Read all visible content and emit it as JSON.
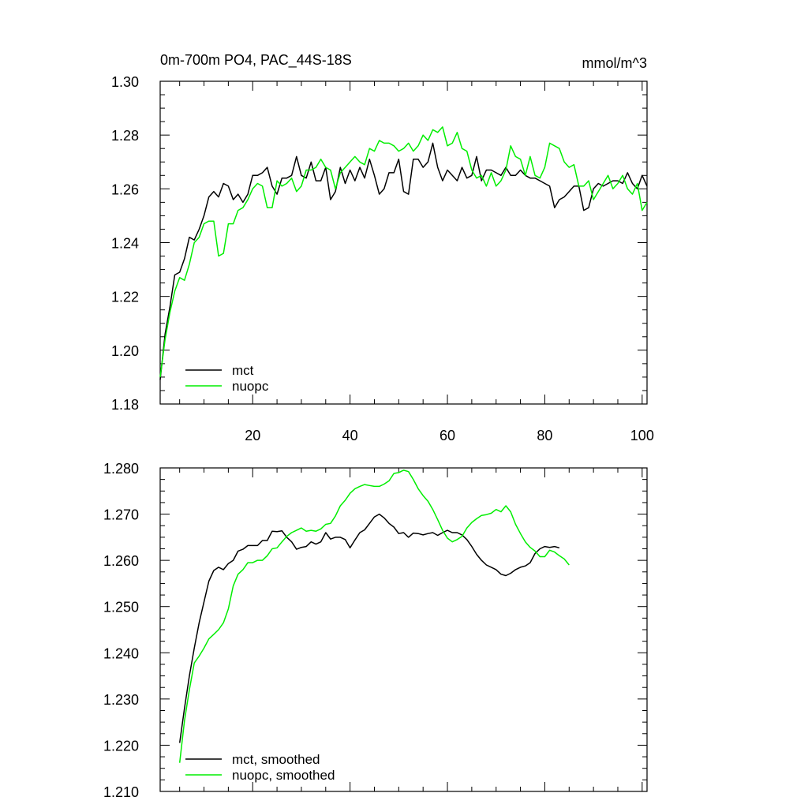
{
  "colors": {
    "mct": "#000000",
    "nuopc": "#00ee00",
    "axis": "#000000",
    "background": "#ffffff"
  },
  "chart_data": [
    {
      "type": "line",
      "title": "0m-700m PO4, PAC_44S-18S",
      "units": "mmol/m^3",
      "xlim": [
        1,
        101
      ],
      "ylim": [
        1.18,
        1.3
      ],
      "x_ticks": [
        20,
        40,
        60,
        80,
        100
      ],
      "x_tick_labels": [
        "20",
        "40",
        "60",
        "80",
        "100"
      ],
      "y_ticks": [
        1.18,
        1.2,
        1.22,
        1.24,
        1.26,
        1.28,
        1.3
      ],
      "y_tick_labels": [
        "1.18",
        "1.20",
        "1.22",
        "1.24",
        "1.26",
        "1.28",
        "1.30"
      ],
      "legend_placement": "bottom-left",
      "grid": false,
      "series": [
        {
          "name": "mct",
          "color": "#000000",
          "x_start": 1,
          "values": [
            1.189,
            1.206,
            1.216,
            1.228,
            1.229,
            1.234,
            1.242,
            1.241,
            1.245,
            1.25,
            1.257,
            1.259,
            1.257,
            1.262,
            1.261,
            1.256,
            1.258,
            1.255,
            1.258,
            1.265,
            1.265,
            1.266,
            1.268,
            1.261,
            1.258,
            1.264,
            1.264,
            1.265,
            1.272,
            1.265,
            1.264,
            1.27,
            1.263,
            1.263,
            1.268,
            1.256,
            1.259,
            1.268,
            1.262,
            1.267,
            1.263,
            1.268,
            1.264,
            1.271,
            1.265,
            1.258,
            1.26,
            1.266,
            1.266,
            1.271,
            1.259,
            1.258,
            1.271,
            1.271,
            1.268,
            1.27,
            1.277,
            1.268,
            1.263,
            1.267,
            1.265,
            1.263,
            1.268,
            1.264,
            1.265,
            1.272,
            1.263,
            1.267,
            1.267,
            1.266,
            1.265,
            1.268,
            1.265,
            1.265,
            1.267,
            1.265,
            1.264,
            1.264,
            1.263,
            1.262,
            1.261,
            1.253,
            1.256,
            1.257,
            1.259,
            1.261,
            1.261,
            1.252,
            1.253,
            1.26,
            1.262,
            1.261,
            1.262,
            1.263,
            1.263,
            1.262,
            1.266,
            1.262,
            1.26,
            1.265,
            1.261
          ]
        },
        {
          "name": "nuopc",
          "color": "#00ee00",
          "x_start": 1,
          "values": [
            1.19,
            1.204,
            1.214,
            1.222,
            1.227,
            1.226,
            1.232,
            1.24,
            1.242,
            1.247,
            1.248,
            1.248,
            1.235,
            1.236,
            1.247,
            1.247,
            1.252,
            1.253,
            1.256,
            1.26,
            1.262,
            1.261,
            1.253,
            1.253,
            1.263,
            1.261,
            1.262,
            1.264,
            1.259,
            1.261,
            1.267,
            1.267,
            1.268,
            1.271,
            1.268,
            1.267,
            1.26,
            1.266,
            1.268,
            1.27,
            1.272,
            1.27,
            1.269,
            1.275,
            1.274,
            1.278,
            1.277,
            1.277,
            1.276,
            1.274,
            1.275,
            1.277,
            1.274,
            1.276,
            1.28,
            1.278,
            1.282,
            1.281,
            1.283,
            1.276,
            1.277,
            1.281,
            1.275,
            1.274,
            1.267,
            1.264,
            1.265,
            1.261,
            1.266,
            1.261,
            1.263,
            1.267,
            1.276,
            1.272,
            1.271,
            1.265,
            1.272,
            1.265,
            1.264,
            1.268,
            1.277,
            1.276,
            1.275,
            1.27,
            1.268,
            1.269,
            1.261,
            1.261,
            1.263,
            1.256,
            1.259,
            1.262,
            1.265,
            1.26,
            1.262,
            1.265,
            1.26,
            1.258,
            1.262,
            1.252,
            1.255
          ]
        }
      ],
      "legend": [
        {
          "label": "mct",
          "color": "#000000"
        },
        {
          "label": "nuopc",
          "color": "#00ee00"
        }
      ]
    },
    {
      "type": "line",
      "xlim": [
        1,
        101
      ],
      "ylim": [
        1.21,
        1.28
      ],
      "x_ticks": [
        20,
        40,
        60,
        80,
        100
      ],
      "y_ticks": [
        1.21,
        1.22,
        1.23,
        1.24,
        1.25,
        1.26,
        1.27,
        1.28
      ],
      "y_tick_labels": [
        "1.210",
        "1.220",
        "1.230",
        "1.240",
        "1.250",
        "1.260",
        "1.270",
        "1.280"
      ],
      "legend_placement": "bottom-left",
      "grid": false,
      "series": [
        {
          "name": "mct, smoothed",
          "color": "#000000",
          "x_start": 5,
          "values": [
            1.2205,
            1.228,
            1.235,
            1.241,
            1.2465,
            1.251,
            1.2555,
            1.2578,
            1.2585,
            1.258,
            1.2593,
            1.26,
            1.262,
            1.2624,
            1.2632,
            1.2632,
            1.2632,
            1.2643,
            1.2643,
            1.2663,
            1.2662,
            1.2664,
            1.265,
            1.264,
            1.2624,
            1.2628,
            1.263,
            1.264,
            1.2635,
            1.264,
            1.266,
            1.2646,
            1.265,
            1.265,
            1.2645,
            1.2627,
            1.2644,
            1.266,
            1.2666,
            1.268,
            1.2694,
            1.27,
            1.2692,
            1.268,
            1.2672,
            1.2658,
            1.266,
            1.265,
            1.2659,
            1.2658,
            1.2655,
            1.2658,
            1.266,
            1.2654,
            1.266,
            1.2665,
            1.266,
            1.266,
            1.2655,
            1.2645,
            1.263,
            1.2613,
            1.26,
            1.259,
            1.2585,
            1.258,
            1.257,
            1.2567,
            1.2572,
            1.258,
            1.2585,
            1.2588,
            1.2595,
            1.2615,
            1.2625,
            1.263,
            1.2628,
            1.263,
            1.2627
          ]
        },
        {
          "name": "nuopc, smoothed",
          "color": "#00ee00",
          "x_start": 5,
          "values": [
            1.2162,
            1.2253,
            1.232,
            1.2378,
            1.2393,
            1.241,
            1.243,
            1.244,
            1.245,
            1.2465,
            1.2495,
            1.2545,
            1.257,
            1.258,
            1.2595,
            1.2595,
            1.26,
            1.26,
            1.261,
            1.2625,
            1.2627,
            1.264,
            1.2652,
            1.266,
            1.2665,
            1.267,
            1.2663,
            1.2665,
            1.2663,
            1.2668,
            1.2678,
            1.268,
            1.2696,
            1.2718,
            1.273,
            1.2745,
            1.2755,
            1.276,
            1.2764,
            1.2762,
            1.276,
            1.276,
            1.2765,
            1.2772,
            1.2788,
            1.279,
            1.2795,
            1.2792,
            1.2775,
            1.2755,
            1.274,
            1.2728,
            1.271,
            1.2688,
            1.2665,
            1.2648,
            1.264,
            1.2645,
            1.2652,
            1.267,
            1.2682,
            1.269,
            1.2697,
            1.2699,
            1.2702,
            1.271,
            1.2705,
            1.2718,
            1.2705,
            1.2678,
            1.2658,
            1.264,
            1.2628,
            1.262,
            1.2608,
            1.2608,
            1.2622,
            1.2618,
            1.261,
            1.2603,
            1.259
          ]
        }
      ],
      "legend": [
        {
          "label": "mct, smoothed",
          "color": "#000000"
        },
        {
          "label": "nuopc, smoothed",
          "color": "#00ee00"
        }
      ]
    }
  ]
}
